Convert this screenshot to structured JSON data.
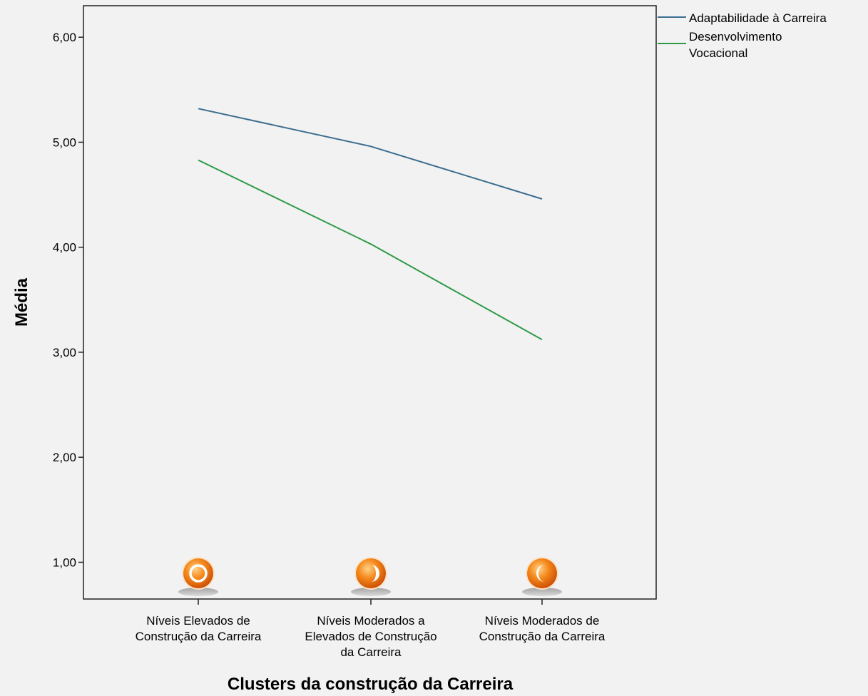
{
  "chart_data": {
    "type": "line",
    "title": "",
    "xlabel": "Clusters da construção da Carreira",
    "ylabel": "Média",
    "ylim": [
      0.65,
      6.3
    ],
    "yticks": [
      1,
      2,
      3,
      4,
      5,
      6
    ],
    "ytick_labels": [
      "1,00",
      "2,00",
      "3,00",
      "4,00",
      "5,00",
      "6,00"
    ],
    "grid": false,
    "legend_position": "outside-top-right",
    "categories": [
      [
        "Níveis Elevados de",
        "Construção da Carreira"
      ],
      [
        "Níveis Moderados a",
        "Elevados de Construção",
        "da Carreira"
      ],
      [
        "Níveis Moderados de",
        "Construção da Carreira"
      ]
    ],
    "series": [
      {
        "name": [
          "Adaptabilidade à Carreira"
        ],
        "values": [
          5.32,
          4.96,
          4.46
        ],
        "color": "#3c6e8f"
      },
      {
        "name": [
          "Desenvolvimento",
          "Vocacional"
        ],
        "values": [
          4.83,
          4.03,
          3.12
        ],
        "color": "#2e9a48"
      }
    ],
    "markers": [
      {
        "icon": "orange-circle-icon"
      },
      {
        "icon": "orange-half-moon-icon"
      },
      {
        "icon": "orange-crescent-icon"
      }
    ],
    "background_color": "#f2f2f2",
    "marker_color": "#f07a0c"
  }
}
